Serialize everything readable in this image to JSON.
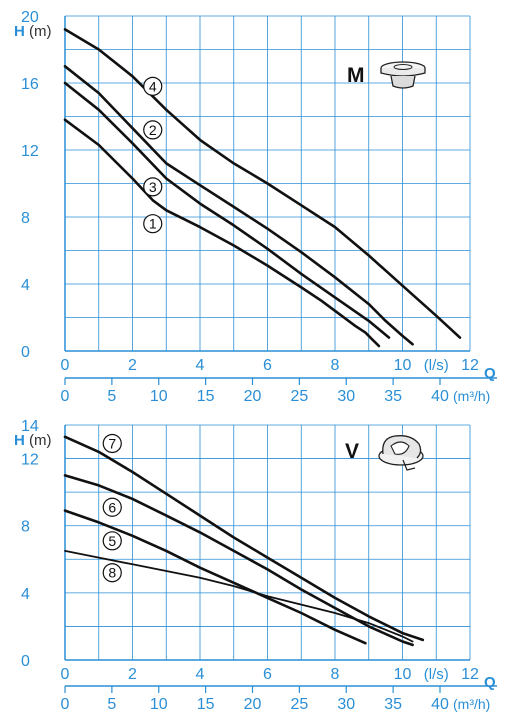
{
  "theme": {
    "axis_color": "#2a8fd6",
    "grid_color": "#2a8fd6",
    "curve_color": "#111111",
    "ylabel_color": "#2a8fd6"
  },
  "chart_data": [
    {
      "type": "line",
      "series_badge": "M",
      "icon": "impeller-m-icon",
      "ylabel_symbol": "H",
      "ylabel_unit": "(m)",
      "xlabel_symbol": "Q",
      "xunit_ls": "(l/s)",
      "xunit_m3h": "(m³/h)",
      "ylim": [
        0,
        20
      ],
      "xlim_ls": [
        0,
        12
      ],
      "xlim_m3h": [
        0,
        43.2
      ],
      "grid": true,
      "y_ticks": [
        "0",
        "4",
        "8",
        "12",
        "16",
        "20"
      ],
      "x_ticks_ls": [
        "0",
        "2",
        "4",
        "6",
        "8",
        "10",
        "12"
      ],
      "x_ticks_m3h": [
        "0",
        "5",
        "10",
        "15",
        "20",
        "25",
        "30",
        "35",
        "40"
      ],
      "series": [
        {
          "name": "1",
          "x": [
            0,
            1,
            2,
            2.6,
            3,
            4,
            5,
            6,
            7,
            7.6,
            8.2,
            8.6,
            8.9,
            9.1,
            9.3
          ],
          "y": [
            13.8,
            12.3,
            10.3,
            9.0,
            8.4,
            7.4,
            6.3,
            5.1,
            3.8,
            3.0,
            2.1,
            1.5,
            1.1,
            0.7,
            0.3
          ]
        },
        {
          "name": "2",
          "x": [
            0,
            1,
            2,
            3,
            4,
            5,
            6,
            7,
            8,
            9,
            9.5,
            10.0,
            10.3
          ],
          "y": [
            17.0,
            15.4,
            13.3,
            11.2,
            9.9,
            8.6,
            7.3,
            5.9,
            4.4,
            2.8,
            1.8,
            0.9,
            0.4
          ]
        },
        {
          "name": "3",
          "x": [
            0,
            1,
            2,
            3,
            4,
            5,
            6,
            7,
            8,
            9,
            9.6
          ],
          "y": [
            16.0,
            14.4,
            12.4,
            10.3,
            8.8,
            7.5,
            6.1,
            4.6,
            3.2,
            1.8,
            0.8
          ]
        },
        {
          "name": "4",
          "x": [
            0,
            1,
            2,
            3,
            4,
            5,
            6,
            7,
            8,
            9,
            10,
            11,
            11.7
          ],
          "y": [
            19.2,
            18.0,
            16.4,
            14.4,
            12.6,
            11.2,
            10.0,
            8.7,
            7.4,
            5.7,
            3.9,
            2.1,
            0.8
          ]
        }
      ],
      "label_positions_data": [
        {
          "series": "4",
          "x": 2.6,
          "y": 15.8
        },
        {
          "series": "2",
          "x": 2.6,
          "y": 13.2
        },
        {
          "series": "3",
          "x": 2.6,
          "y": 9.8
        },
        {
          "series": "1",
          "x": 2.6,
          "y": 7.6
        }
      ]
    },
    {
      "type": "line",
      "series_badge": "V",
      "icon": "impeller-v-icon",
      "ylabel_symbol": "H",
      "ylabel_unit": "(m)",
      "xlabel_symbol": "Q",
      "xunit_ls": "(l/s)",
      "xunit_m3h": "(m³/h)",
      "ylim": [
        0,
        14
      ],
      "xlim_ls": [
        0,
        12
      ],
      "xlim_m3h": [
        0,
        43.2
      ],
      "grid": true,
      "y_ticks": [
        "0",
        "4",
        "8",
        "12",
        "14"
      ],
      "x_ticks_ls": [
        "0",
        "2",
        "4",
        "6",
        "8",
        "10",
        "12"
      ],
      "x_ticks_m3h": [
        "0",
        "5",
        "10",
        "15",
        "20",
        "25",
        "30",
        "35",
        "40"
      ],
      "series": [
        {
          "name": "5",
          "x": [
            0,
            1,
            2,
            3,
            4,
            5,
            6,
            7,
            8,
            8.9
          ],
          "y": [
            8.9,
            8.2,
            7.4,
            6.5,
            5.5,
            4.6,
            3.7,
            2.8,
            1.8,
            1.0
          ]
        },
        {
          "name": "6",
          "x": [
            0,
            1,
            2,
            3,
            4,
            5,
            6,
            7,
            8,
            9,
            10,
            10.3
          ],
          "y": [
            11.0,
            10.4,
            9.6,
            8.6,
            7.6,
            6.5,
            5.4,
            4.2,
            3.1,
            2.0,
            1.1,
            0.9
          ]
        },
        {
          "name": "7",
          "x": [
            0,
            1,
            2,
            3,
            4,
            5,
            6,
            7,
            8,
            9,
            10,
            10.6
          ],
          "y": [
            13.3,
            12.4,
            11.2,
            9.9,
            8.6,
            7.3,
            6.1,
            4.9,
            3.7,
            2.6,
            1.6,
            1.2
          ]
        },
        {
          "name": "8",
          "x": [
            0,
            1,
            2,
            3,
            4,
            5,
            6,
            7,
            8,
            9,
            10,
            10.3
          ],
          "y": [
            6.5,
            6.1,
            5.7,
            5.3,
            4.9,
            4.4,
            3.8,
            3.3,
            2.8,
            2.2,
            1.4,
            1.1
          ]
        }
      ],
      "label_positions_data": [
        {
          "series": "7",
          "x": 1.4,
          "y": 12.9
        },
        {
          "series": "6",
          "x": 1.4,
          "y": 9.1
        },
        {
          "series": "5",
          "x": 1.4,
          "y": 7.1
        },
        {
          "series": "8",
          "x": 1.4,
          "y": 5.2
        }
      ]
    }
  ]
}
